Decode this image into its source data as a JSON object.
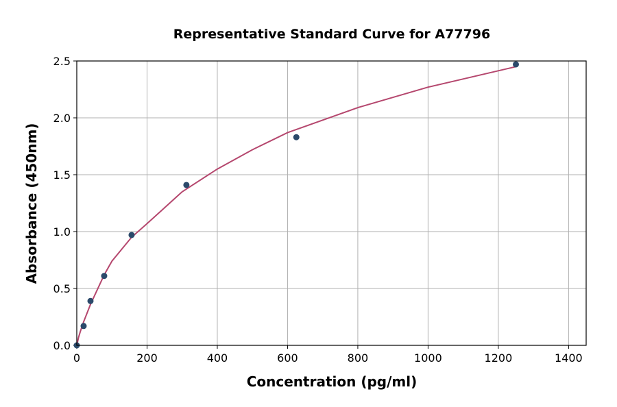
{
  "chart_data": {
    "type": "scatter",
    "title": "Representative Standard Curve for A77796",
    "xlabel": "Concentration (pg/ml)",
    "ylabel": "Absorbance (450nm)",
    "xlim": [
      0,
      1450
    ],
    "ylim": [
      0,
      2.5
    ],
    "xticks": [
      0,
      200,
      400,
      600,
      800,
      1000,
      1200,
      1400
    ],
    "yticks": [
      0.0,
      0.5,
      1.0,
      1.5,
      2.0,
      2.5
    ],
    "grid": true,
    "points": {
      "x": [
        0,
        19.5,
        39,
        78,
        156,
        312,
        625,
        1250
      ],
      "y": [
        0.0,
        0.17,
        0.39,
        0.61,
        0.97,
        1.41,
        1.83,
        2.47
      ],
      "color": "#2b4a6b"
    },
    "fit_curve": {
      "x": [
        0,
        5,
        10,
        20,
        39,
        78,
        100,
        156,
        200,
        300,
        400,
        500,
        600,
        800,
        1000,
        1250
      ],
      "y": [
        0,
        0.07,
        0.12,
        0.21,
        0.36,
        0.62,
        0.74,
        0.95,
        1.07,
        1.35,
        1.55,
        1.72,
        1.87,
        2.09,
        2.27,
        2.45
      ],
      "color": "#b5476e"
    }
  }
}
